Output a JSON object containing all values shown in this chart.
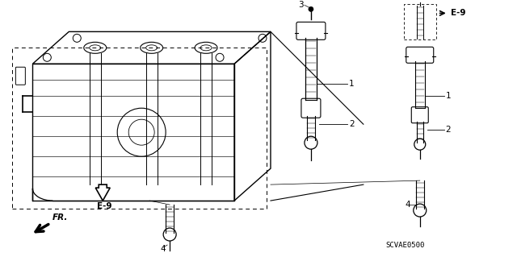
{
  "bg_color": "#ffffff",
  "line_color": "#000000",
  "part_code": "SCVAE0500",
  "label_E9": "E-9",
  "label_FR": "FR.",
  "figsize": [
    6.4,
    3.19
  ],
  "dpi": 100
}
